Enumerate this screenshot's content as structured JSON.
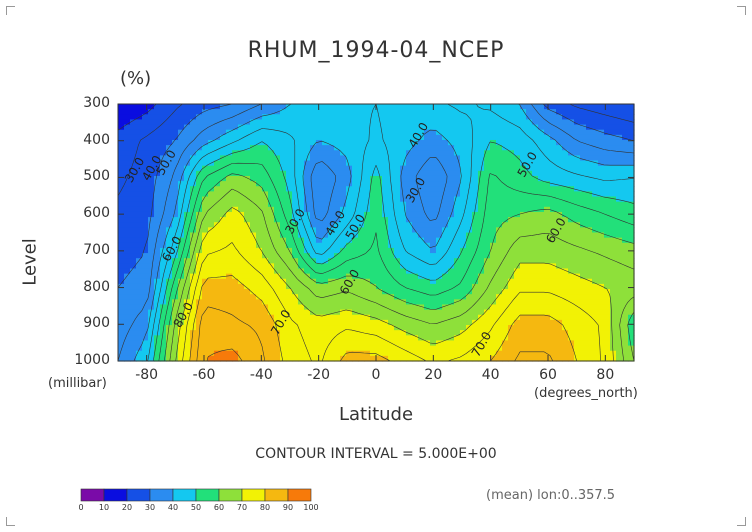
{
  "title": "RHUM_1994-04_NCEP",
  "units": "(%)",
  "contour_interval": "CONTOUR INTERVAL = 5.000E+00",
  "footnote": "(mean) lon:0..357.5",
  "colors": {
    "levels": [
      "#7a0ba8",
      "#0a0de0",
      "#1550e6",
      "#2b8cf0",
      "#14c8f0",
      "#22e07a",
      "#8ee03a",
      "#f2f205",
      "#f5b810",
      "#f77a0a",
      "#f51a0a"
    ],
    "frame": "#333333"
  },
  "chart_data": {
    "type": "contour",
    "title": "RHUM_1994-04_NCEP",
    "xlabel": "Latitude",
    "xlabel_units": "(degrees_north)",
    "ylabel": "Level",
    "ylabel_units": "(millibar)",
    "xlim": [
      -90,
      90
    ],
    "ylim": [
      1000,
      300
    ],
    "x_ticks": [
      -80,
      -60,
      -40,
      -20,
      0,
      20,
      40,
      60,
      80
    ],
    "y_ticks": [
      300,
      400,
      500,
      600,
      700,
      800,
      900,
      1000
    ],
    "colorbar_ticks": [
      0,
      10,
      20,
      30,
      40,
      50,
      60,
      70,
      80,
      90,
      100
    ],
    "contour_interval": 5,
    "contour_labels": [
      {
        "text": "30.0",
        "lat": -83,
        "lev": 485
      },
      {
        "text": "40.0",
        "lat": -77,
        "lev": 480
      },
      {
        "text": "50.0",
        "lat": -72,
        "lev": 465
      },
      {
        "text": "60.0",
        "lat": -70,
        "lev": 700
      },
      {
        "text": "80.0",
        "lat": -66,
        "lev": 880
      },
      {
        "text": "30.0",
        "lat": -27,
        "lev": 625
      },
      {
        "text": "40.0",
        "lat": -13,
        "lev": 630
      },
      {
        "text": "50.0",
        "lat": -6,
        "lev": 640
      },
      {
        "text": "60.0",
        "lat": -8,
        "lev": 790
      },
      {
        "text": "70.0",
        "lat": -32,
        "lev": 900
      },
      {
        "text": "40.0",
        "lat": 16,
        "lev": 390
      },
      {
        "text": "30.0",
        "lat": 15,
        "lev": 540
      },
      {
        "text": "50.0",
        "lat": 54,
        "lev": 470
      },
      {
        "text": "60.0",
        "lat": 64,
        "lev": 650
      },
      {
        "text": "70.0",
        "lat": 38,
        "lev": 960
      }
    ],
    "grid_lat": [
      -90,
      -80,
      -70,
      -60,
      -50,
      -40,
      -30,
      -20,
      -10,
      0,
      10,
      20,
      30,
      40,
      50,
      60,
      70,
      80,
      90
    ],
    "grid_lev": [
      300,
      400,
      500,
      600,
      700,
      800,
      900,
      1000
    ],
    "values": [
      [
        15,
        18,
        24,
        28,
        30,
        35,
        40,
        42,
        44,
        45,
        42,
        44,
        46,
        44,
        40,
        28,
        24,
        22,
        20
      ],
      [
        22,
        26,
        30,
        38,
        44,
        50,
        46,
        40,
        42,
        46,
        42,
        38,
        42,
        50,
        48,
        42,
        35,
        32,
        30
      ],
      [
        24,
        27,
        36,
        55,
        62,
        58,
        48,
        30,
        38,
        52,
        38,
        30,
        40,
        56,
        52,
        48,
        46,
        44,
        45
      ],
      [
        26,
        28,
        40,
        65,
        72,
        66,
        52,
        32,
        42,
        54,
        40,
        33,
        44,
        58,
        60,
        62,
        58,
        55,
        52
      ],
      [
        28,
        30,
        48,
        74,
        76,
        70,
        60,
        42,
        52,
        56,
        45,
        40,
        50,
        60,
        68,
        68,
        66,
        64,
        62
      ],
      [
        30,
        32,
        58,
        82,
        82,
        78,
        70,
        62,
        64,
        60,
        55,
        52,
        56,
        66,
        74,
        74,
        72,
        70,
        68
      ],
      [
        32,
        38,
        66,
        88,
        86,
        84,
        76,
        72,
        74,
        72,
        68,
        65,
        68,
        74,
        82,
        82,
        78,
        74,
        56
      ],
      [
        35,
        44,
        70,
        90,
        92,
        86,
        78,
        74,
        82,
        82,
        78,
        74,
        76,
        80,
        86,
        86,
        80,
        74,
        60
      ]
    ]
  }
}
